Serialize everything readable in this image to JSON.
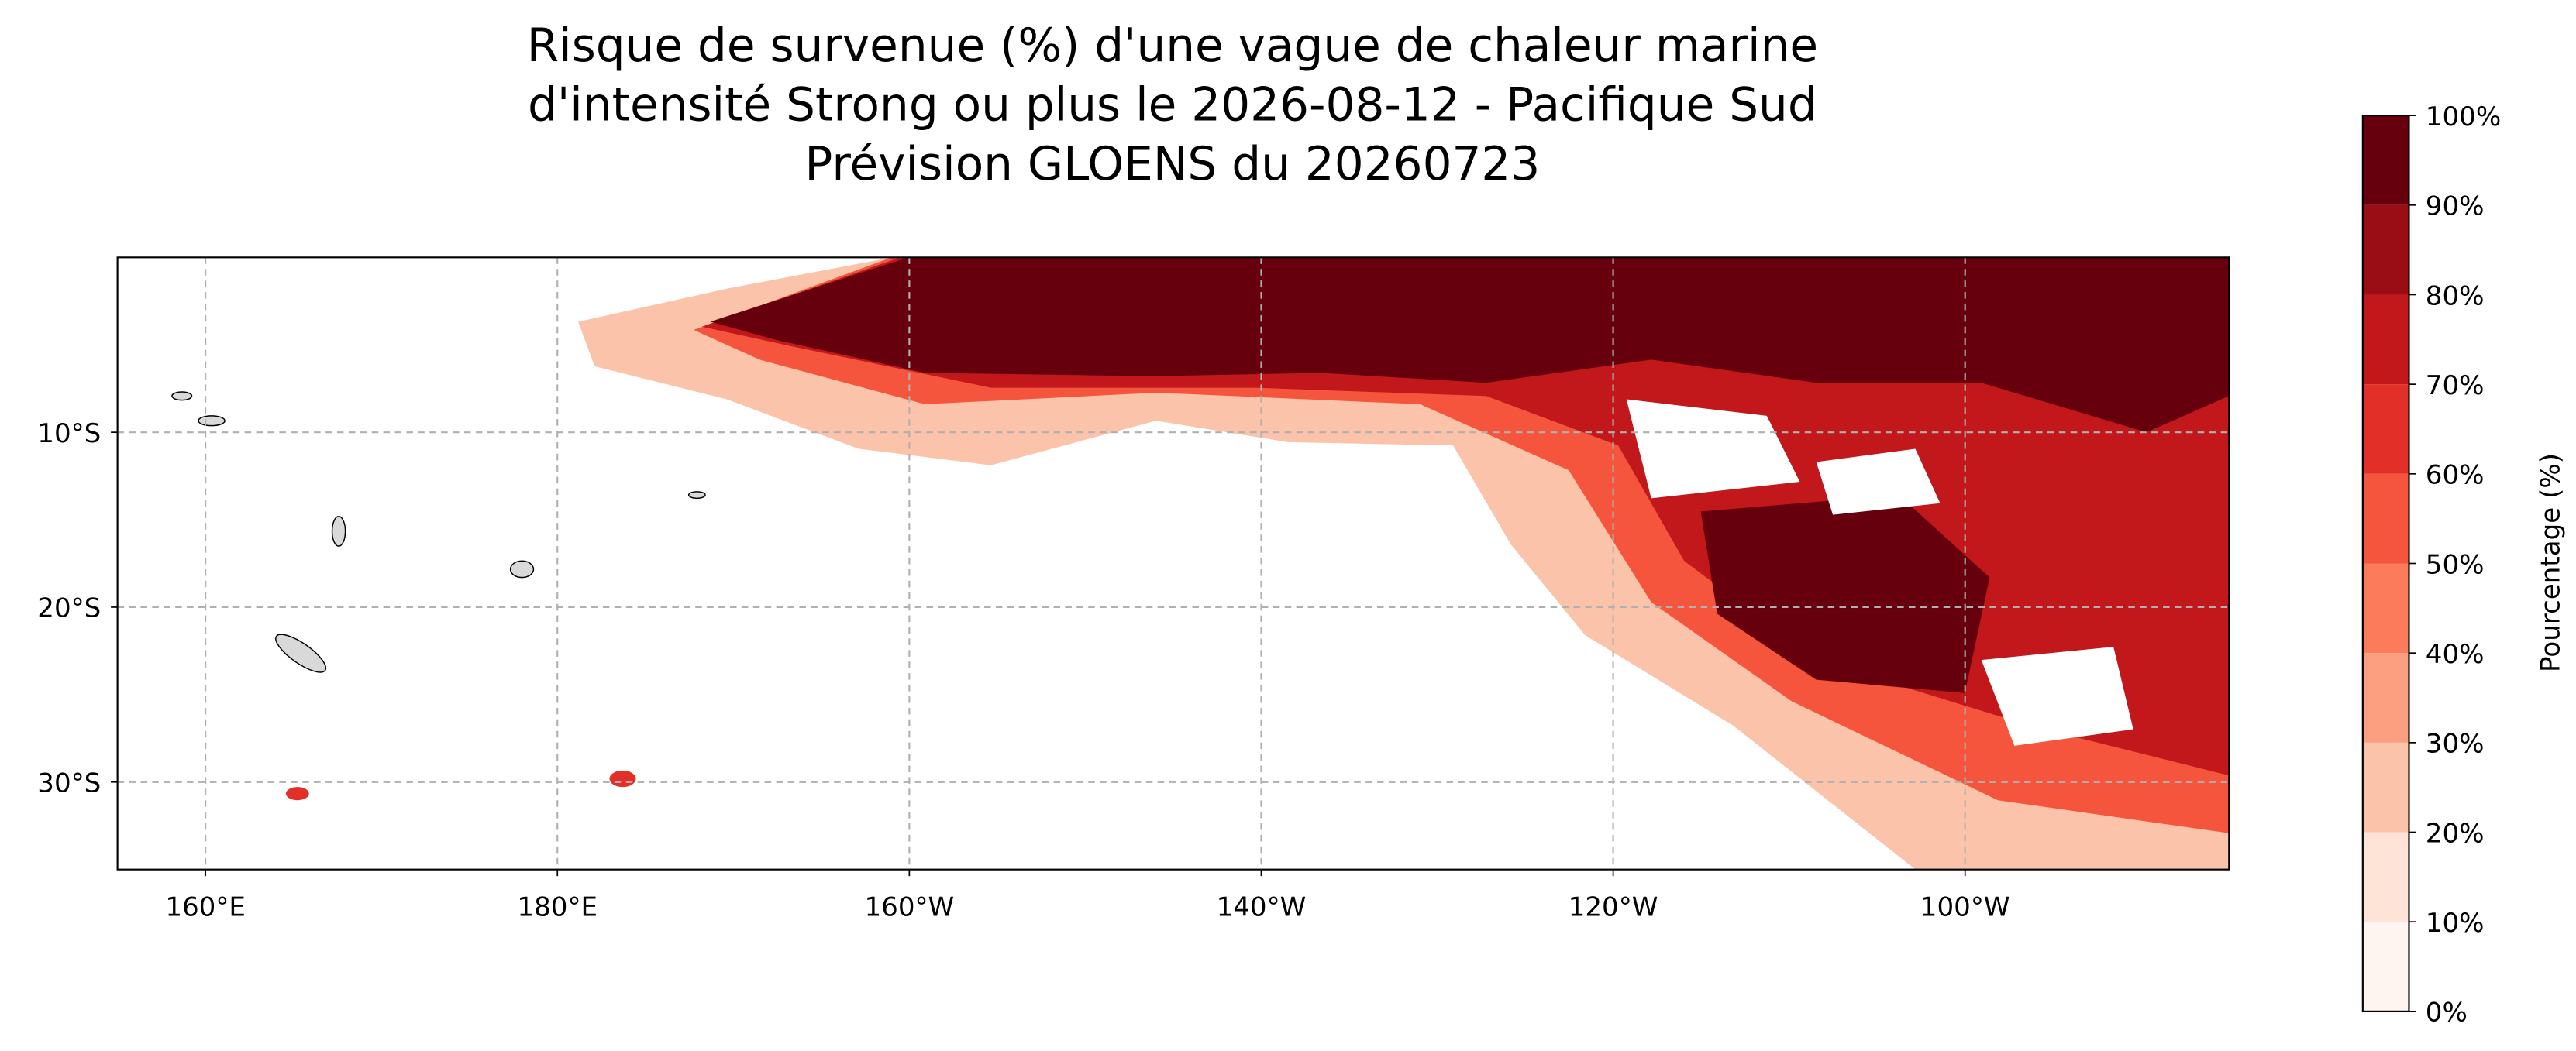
{
  "chart_data": {
    "type": "map",
    "title": [
      "Risque de survenue (%) d'une vague de chaleur marine",
      "d'intensité Strong ou plus le 2026-08-12 - Pacifique Sud",
      "Prévision GLOENS du 20260723"
    ],
    "xlim": [
      155,
      275
    ],
    "xticks": [
      {
        "value": 160,
        "label": "160°E"
      },
      {
        "value": 180,
        "label": "180°E"
      },
      {
        "value": 200,
        "label": "160°W"
      },
      {
        "value": 220,
        "label": "140°W"
      },
      {
        "value": 240,
        "label": "120°W"
      },
      {
        "value": 260,
        "label": "100°W"
      }
    ],
    "ylim": [
      -35,
      0
    ],
    "yticks": [
      {
        "value": -10,
        "label": "10°S"
      },
      {
        "value": -20,
        "label": "20°S"
      },
      {
        "value": -30,
        "label": "30°S"
      }
    ],
    "grid": true,
    "colorbar": {
      "label": "Pourcentage (%)",
      "levels": [
        {
          "value": 0,
          "label": "0%"
        },
        {
          "value": 10,
          "label": "10%"
        },
        {
          "value": 20,
          "label": "20%"
        },
        {
          "value": 30,
          "label": "30%"
        },
        {
          "value": 40,
          "label": "40%"
        },
        {
          "value": 50,
          "label": "50%"
        },
        {
          "value": 60,
          "label": "60%"
        },
        {
          "value": 70,
          "label": "70%"
        },
        {
          "value": 80,
          "label": "80%"
        },
        {
          "value": 90,
          "label": "90%"
        },
        {
          "value": 100,
          "label": "100%"
        }
      ],
      "colors": [
        "#fff5f0",
        "#fee3d7",
        "#fcc3ab",
        "#fc9f81",
        "#fb7b5b",
        "#f5553d",
        "#e23028",
        "#c2181c",
        "#9b0d14",
        "#67000d"
      ]
    }
  }
}
